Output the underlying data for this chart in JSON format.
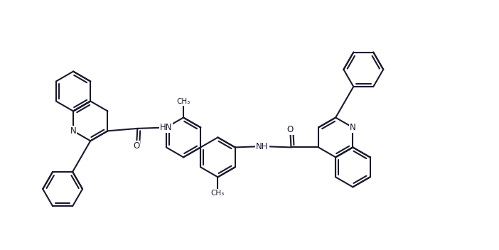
{
  "background_color": "#ffffff",
  "line_color": "#1a1a2e",
  "line_width": 1.5,
  "figsize": [
    7.02,
    3.52
  ],
  "dpi": 100,
  "xlim": [
    0,
    10
  ],
  "ylim": [
    0,
    5
  ]
}
